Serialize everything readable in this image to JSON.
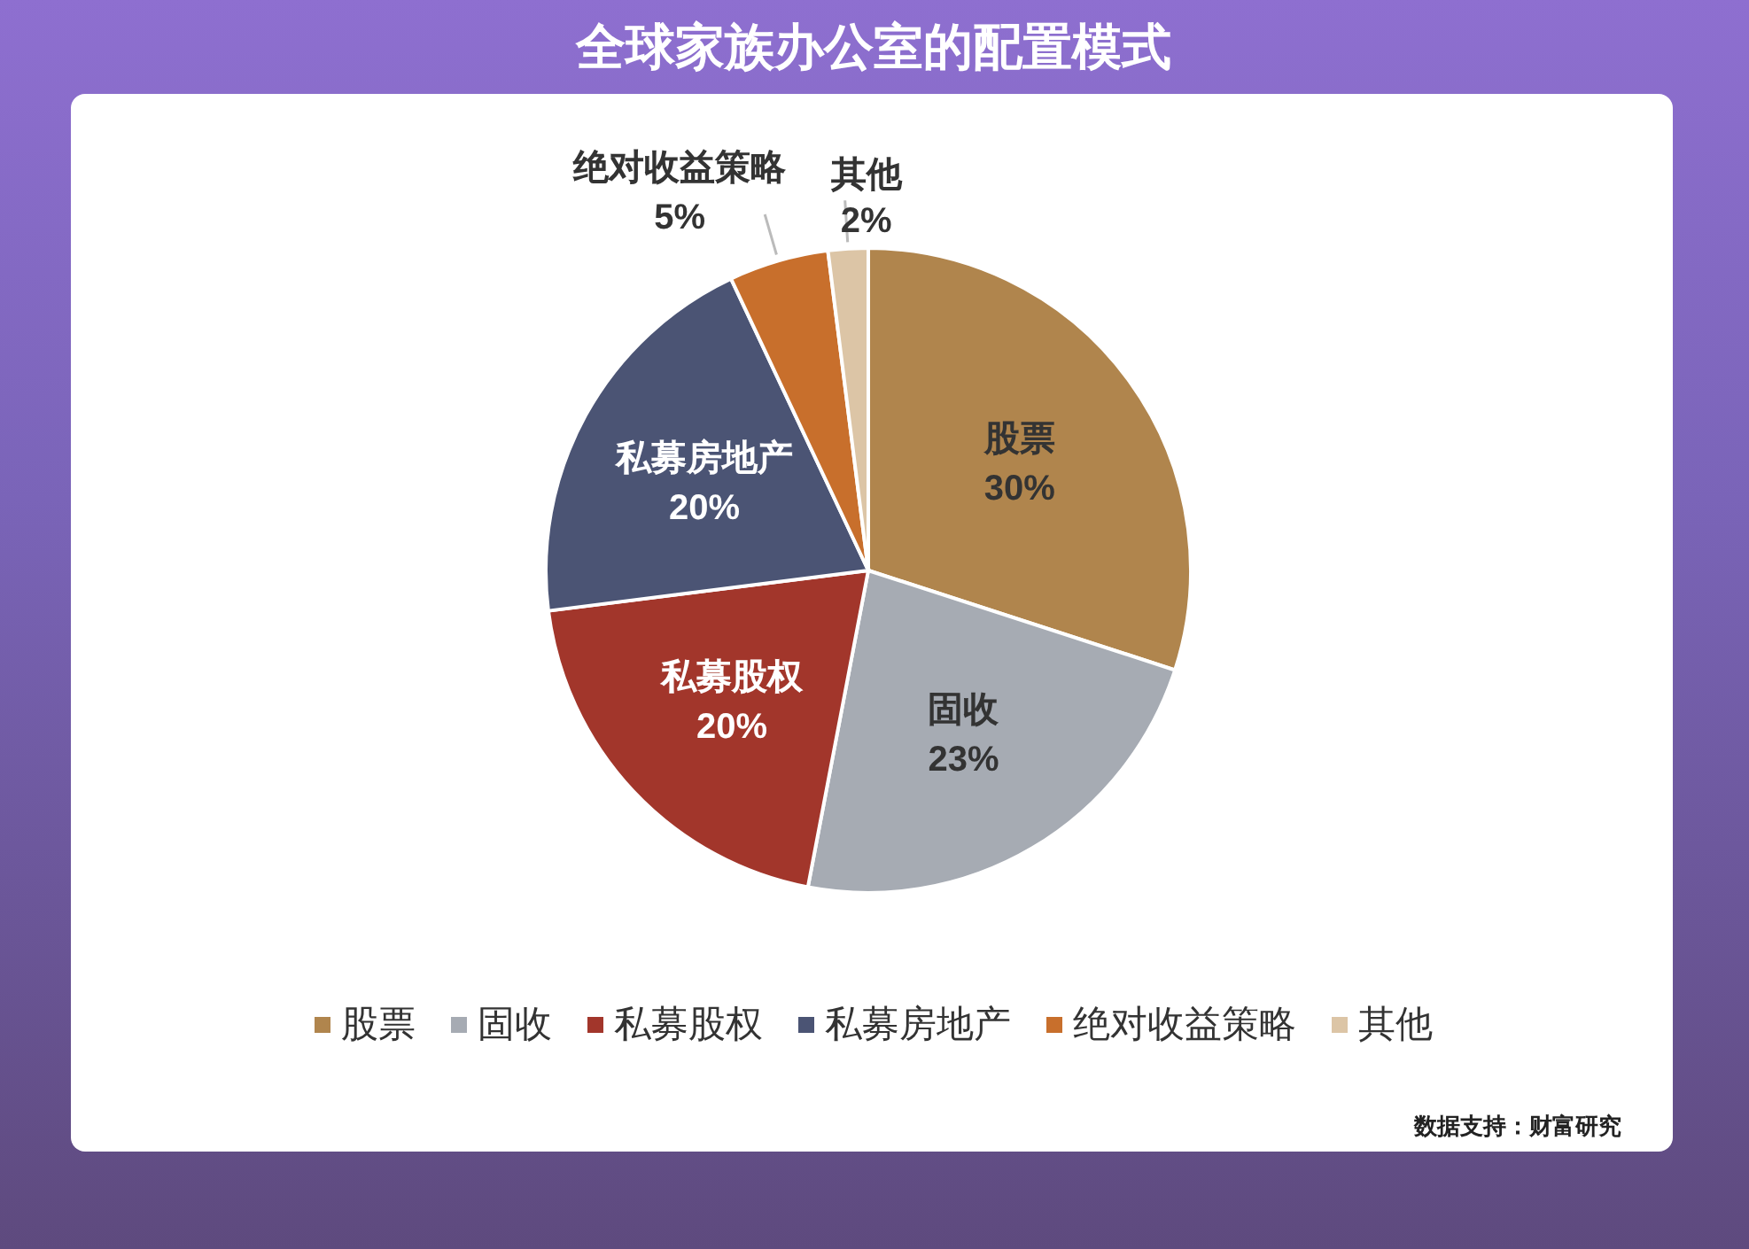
{
  "chart_data": {
    "type": "pie",
    "title": "全球家族办公室的配置模式",
    "categories": [
      "股票",
      "固收",
      "私募股权",
      "私募房地产",
      "绝对收益策略",
      "其他"
    ],
    "values": [
      30,
      23,
      20,
      20,
      5,
      2
    ],
    "value_labels": [
      "30%",
      "23%",
      "20%",
      "20%",
      "5%",
      "2%"
    ],
    "colors": [
      "#b0854d",
      "#a6abb3",
      "#a2362b",
      "#4b5474",
      "#c86f2c",
      "#dcc5a6"
    ],
    "legend": "bottom",
    "annotations": [
      "数据支持：财富研究"
    ]
  }
}
